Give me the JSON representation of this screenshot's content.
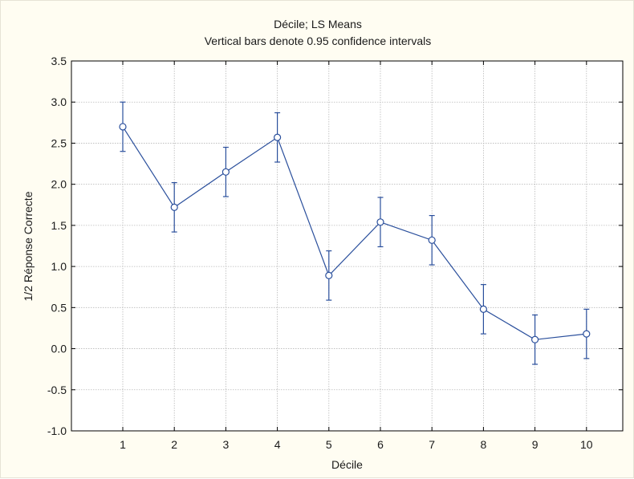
{
  "chart_data": {
    "type": "line",
    "title": "Décile; LS Means",
    "subtitle": "Vertical bars denote 0.95 confidence intervals",
    "xlabel": "Décile",
    "ylabel": "1/2 Réponse Correcte",
    "categories": [
      "1",
      "2",
      "3",
      "4",
      "5",
      "6",
      "7",
      "8",
      "9",
      "10"
    ],
    "series": [
      {
        "values": [
          2.7,
          1.72,
          2.15,
          2.57,
          0.89,
          1.54,
          1.32,
          0.48,
          0.11,
          0.18
        ],
        "ci_lower": [
          2.4,
          1.42,
          1.85,
          2.27,
          0.59,
          1.24,
          1.02,
          0.18,
          -0.19,
          -0.12
        ],
        "ci_upper": [
          3.0,
          2.02,
          2.45,
          2.87,
          1.19,
          1.84,
          1.62,
          0.78,
          0.41,
          0.48
        ]
      }
    ],
    "ylim": [
      -1.0,
      3.5
    ],
    "yticks": [
      "-1.0",
      "-0.5",
      "0.0",
      "0.5",
      "1.0",
      "1.5",
      "2.0",
      "2.5",
      "3.0",
      "3.5"
    ],
    "grid": true,
    "line_color": "#2a4f9c"
  }
}
